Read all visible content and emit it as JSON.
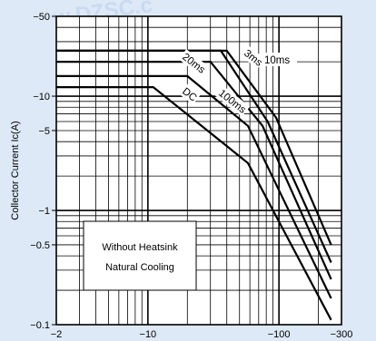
{
  "chart_data": {
    "type": "line",
    "title": "",
    "xlabel": "",
    "ylabel": "Collector Current Ic(A)",
    "x_scale": "log",
    "y_scale": "log",
    "xlim": [
      2,
      300
    ],
    "ylim": [
      0.1,
      50
    ],
    "x_ticks": [
      {
        "value": 2,
        "label": "−2"
      },
      {
        "value": 10,
        "label": "−10"
      },
      {
        "value": 100,
        "label": "−100"
      },
      {
        "value": 300,
        "label": "−300"
      }
    ],
    "y_ticks": [
      {
        "value": 50,
        "label": "−50"
      },
      {
        "value": 10,
        "label": "−10"
      },
      {
        "value": 5,
        "label": "−5"
      },
      {
        "value": 1,
        "label": "−1"
      },
      {
        "value": 0.5,
        "label": "−0.5"
      },
      {
        "value": 0.1,
        "label": "−0.1"
      }
    ],
    "grid": true,
    "series": [
      {
        "name": "DC",
        "points": [
          [
            2,
            12
          ],
          [
            11,
            12
          ],
          [
            58,
            2.6
          ],
          [
            250,
            0.11
          ]
        ]
      },
      {
        "name": "100ms",
        "points": [
          [
            2,
            15
          ],
          [
            20,
            15
          ],
          [
            58,
            5.5
          ],
          [
            250,
            0.17
          ]
        ]
      },
      {
        "name": "20ms",
        "points": [
          [
            2,
            20
          ],
          [
            20,
            20
          ],
          [
            30,
            20
          ],
          [
            75,
            5.5
          ],
          [
            250,
            0.25
          ]
        ]
      },
      {
        "name": "10ms",
        "points": [
          [
            2,
            25
          ],
          [
            20,
            25
          ],
          [
            36,
            25
          ],
          [
            82,
            6
          ],
          [
            250,
            0.35
          ]
        ]
      },
      {
        "name": "3ms",
        "points": [
          [
            2,
            25
          ],
          [
            20,
            25
          ],
          [
            40,
            25
          ],
          [
            95,
            6.5
          ],
          [
            250,
            0.5
          ]
        ]
      }
    ],
    "annotations": [
      {
        "text": "3ms"
      },
      {
        "text": "10ms"
      },
      {
        "text": "20ms"
      },
      {
        "text": "DC"
      },
      {
        "text": "100ms"
      }
    ],
    "legend_box": {
      "line1": "Without Heatsink",
      "line2": "Natural Cooling"
    }
  }
}
